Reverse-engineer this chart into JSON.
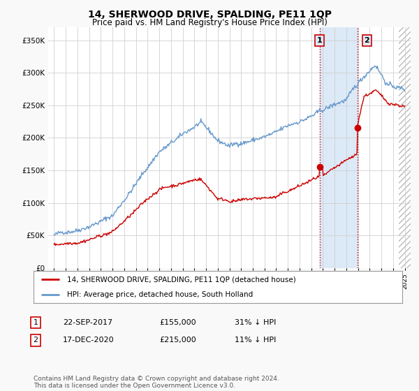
{
  "title": "14, SHERWOOD DRIVE, SPALDING, PE11 1QP",
  "subtitle": "Price paid vs. HM Land Registry's House Price Index (HPI)",
  "title_fontsize": 10,
  "subtitle_fontsize": 8.5,
  "ylabel_ticks": [
    "£0",
    "£50K",
    "£100K",
    "£150K",
    "£200K",
    "£250K",
    "£300K",
    "£350K"
  ],
  "ytick_values": [
    0,
    50000,
    100000,
    150000,
    200000,
    250000,
    300000,
    350000
  ],
  "ylim": [
    0,
    370000
  ],
  "xlim_start": 1994.5,
  "xlim_end": 2025.5,
  "sale1_x": 2017.72,
  "sale1_y": 155000,
  "sale2_x": 2020.96,
  "sale2_y": 215000,
  "hatch_start": 2024.5,
  "shade_color": "#dce9f7",
  "hatch_color": "#cccccc",
  "vline_color": "#cc0000",
  "red_line_color": "#cc0000",
  "blue_line_color": "#6699cc",
  "legend_entry1": "14, SHERWOOD DRIVE, SPALDING, PE11 1QP (detached house)",
  "legend_entry2": "HPI: Average price, detached house, South Holland",
  "table_row1": [
    "1",
    "22-SEP-2017",
    "£155,000",
    "31% ↓ HPI"
  ],
  "table_row2": [
    "2",
    "17-DEC-2020",
    "£215,000",
    "11% ↓ HPI"
  ],
  "footnote": "Contains HM Land Registry data © Crown copyright and database right 2024.\nThis data is licensed under the Open Government Licence v3.0.",
  "background_color": "#f9f9f9",
  "plot_bg_color": "#ffffff"
}
